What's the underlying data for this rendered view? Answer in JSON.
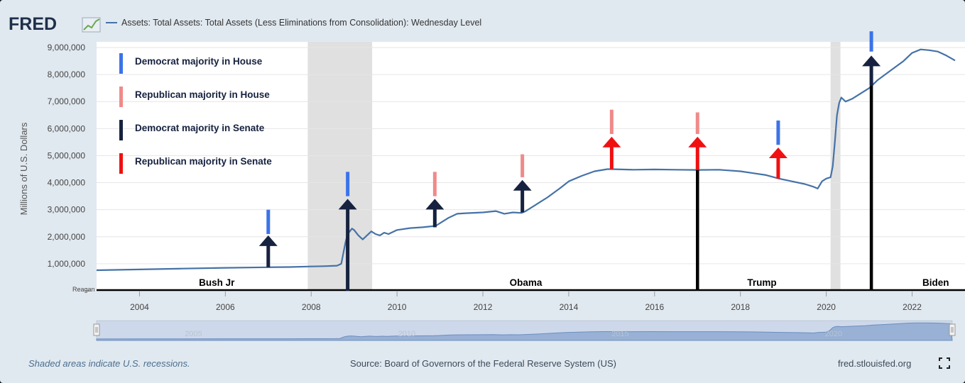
{
  "header": {
    "logo_text": "FRED",
    "series_title": "Assets: Total Assets: Total Assets (Less Eliminations from Consolidation): Wednesday Level"
  },
  "legend": [
    {
      "label": "Democrat majority in House",
      "color": "#3b73e8"
    },
    {
      "label": "Republican majority in House",
      "color": "#f08a8a"
    },
    {
      "label": "Democrat majority in Senate",
      "color": "#16223f"
    },
    {
      "label": "Republican majority in Senate",
      "color": "#f01010"
    }
  ],
  "footer": {
    "recession_note": "Shaded areas indicate U.S. recessions.",
    "source": "Source: Board of Governors of the Federal Reserve System (US)",
    "site": "fred.stlouisfed.org"
  },
  "navigator_labels": [
    "2005",
    "2010",
    "2015",
    "2020"
  ],
  "chart_data": {
    "type": "line",
    "ylabel": "Millions of U.S. Dollars",
    "xlim": [
      2003.0,
      2023.05
    ],
    "ylim": [
      0,
      9000000
    ],
    "yticks": [
      1000000,
      2000000,
      3000000,
      4000000,
      5000000,
      6000000,
      7000000,
      8000000,
      9000000
    ],
    "ytick_labels": [
      "1,000,000",
      "2,000,000",
      "3,000,000",
      "4,000,000",
      "5,000,000",
      "6,000,000",
      "7,000,000",
      "8,000,000",
      "9,000,000"
    ],
    "xticks": [
      2004,
      2006,
      2008,
      2010,
      2012,
      2014,
      2016,
      2018,
      2020,
      2022
    ],
    "xtick_labels": [
      "2004",
      "2006",
      "2008",
      "2010",
      "2012",
      "2014",
      "2016",
      "2018",
      "2020",
      "2022"
    ],
    "grid": true,
    "recessions": [
      [
        2007.92,
        2009.42
      ],
      [
        2020.1,
        2020.33
      ]
    ],
    "series": [
      {
        "color": "#4572a7",
        "x": [
          2003.0,
          2004.0,
          2005.0,
          2006.0,
          2007.0,
          2007.5,
          2008.0,
          2008.3,
          2008.6,
          2008.7,
          2008.75,
          2008.8,
          2008.85,
          2008.9,
          2008.95,
          2009.0,
          2009.1,
          2009.2,
          2009.3,
          2009.4,
          2009.5,
          2009.6,
          2009.7,
          2009.8,
          2010.0,
          2010.3,
          2010.6,
          2010.9,
          2011.0,
          2011.2,
          2011.4,
          2011.6,
          2012.0,
          2012.3,
          2012.5,
          2012.7,
          2012.9,
          2013.0,
          2013.2,
          2013.5,
          2013.8,
          2014.0,
          2014.3,
          2014.6,
          2014.9,
          2015.0,
          2015.5,
          2016.0,
          2016.5,
          2017.0,
          2017.5,
          2018.0,
          2018.3,
          2018.6,
          2018.9,
          2019.2,
          2019.5,
          2019.7,
          2019.8,
          2019.9,
          2020.0,
          2020.1,
          2020.15,
          2020.2,
          2020.25,
          2020.3,
          2020.35,
          2020.45,
          2020.6,
          2020.8,
          2021.0,
          2021.2,
          2021.5,
          2021.8,
          2022.0,
          2022.2,
          2022.4,
          2022.6,
          2022.8,
          2023.0
        ],
        "y": [
          760000,
          790000,
          820000,
          850000,
          870000,
          880000,
          900000,
          910000,
          930000,
          1000000,
          1400000,
          1800000,
          2100000,
          2200000,
          2300000,
          2250000,
          2050000,
          1900000,
          2050000,
          2200000,
          2100000,
          2050000,
          2150000,
          2100000,
          2250000,
          2320000,
          2350000,
          2400000,
          2500000,
          2700000,
          2850000,
          2870000,
          2900000,
          2950000,
          2850000,
          2900000,
          2880000,
          2950000,
          3150000,
          3450000,
          3800000,
          4050000,
          4250000,
          4420000,
          4500000,
          4500000,
          4480000,
          4490000,
          4480000,
          4470000,
          4480000,
          4420000,
          4350000,
          4280000,
          4150000,
          4050000,
          3950000,
          3850000,
          3780000,
          4050000,
          4150000,
          4200000,
          4600000,
          5500000,
          6500000,
          6950000,
          7150000,
          7000000,
          7100000,
          7300000,
          7500000,
          7800000,
          8150000,
          8500000,
          8800000,
          8930000,
          8900000,
          8850000,
          8700000,
          8520000
        ]
      }
    ],
    "events": [
      {
        "x": 2007.0,
        "arrow": "#16223f",
        "arrow_from": 870000,
        "arrow_to": 2050000,
        "bar": "#3b73e8",
        "bar_from": 2100000,
        "bar_to": 3000000
      },
      {
        "x": 2008.85,
        "arrow": "#16223f",
        "arrow_from": 0,
        "arrow_to": 3400000,
        "bar": "#3b73e8",
        "bar_from": 3500000,
        "bar_to": 4400000,
        "line_from": 0,
        "line_to": 2050000
      },
      {
        "x": 2010.88,
        "arrow": "#16223f",
        "arrow_from": 2350000,
        "arrow_to": 3400000,
        "bar": "#f08a8a",
        "bar_from": 3500000,
        "bar_to": 4400000
      },
      {
        "x": 2012.92,
        "arrow": "#16223f",
        "arrow_from": 2900000,
        "arrow_to": 4100000,
        "bar": "#f08a8a",
        "bar_from": 4200000,
        "bar_to": 5050000
      },
      {
        "x": 2015.0,
        "arrow": "#f01010",
        "arrow_from": 4500000,
        "arrow_to": 5700000,
        "bar": "#f08a8a",
        "bar_from": 5800000,
        "bar_to": 6700000
      },
      {
        "x": 2017.0,
        "arrow": "#f01010",
        "arrow_from": 4470000,
        "arrow_to": 5700000,
        "bar": "#f08a8a",
        "bar_from": 5800000,
        "bar_to": 6600000,
        "line_from": 0,
        "line_to": 4470000
      },
      {
        "x": 2018.88,
        "arrow": "#f01010",
        "arrow_from": 4150000,
        "arrow_to": 5300000,
        "bar": "#3b73e8",
        "bar_from": 5400000,
        "bar_to": 6300000
      },
      {
        "x": 2021.05,
        "arrow": "#16223f",
        "arrow_from": 7600000,
        "arrow_to": 8700000,
        "bar": "#3b73e8",
        "bar_from": 8850000,
        "bar_to": 9600000,
        "line_from": 0,
        "line_to": 7600000
      }
    ],
    "baseline_label": "Reagan",
    "presidents": [
      {
        "label": "Bush Jr",
        "x": 2005.8
      },
      {
        "label": "Obama",
        "x": 2013.0
      },
      {
        "label": "Trump",
        "x": 2018.5
      },
      {
        "label": "Biden",
        "x": 2022.55
      }
    ]
  }
}
